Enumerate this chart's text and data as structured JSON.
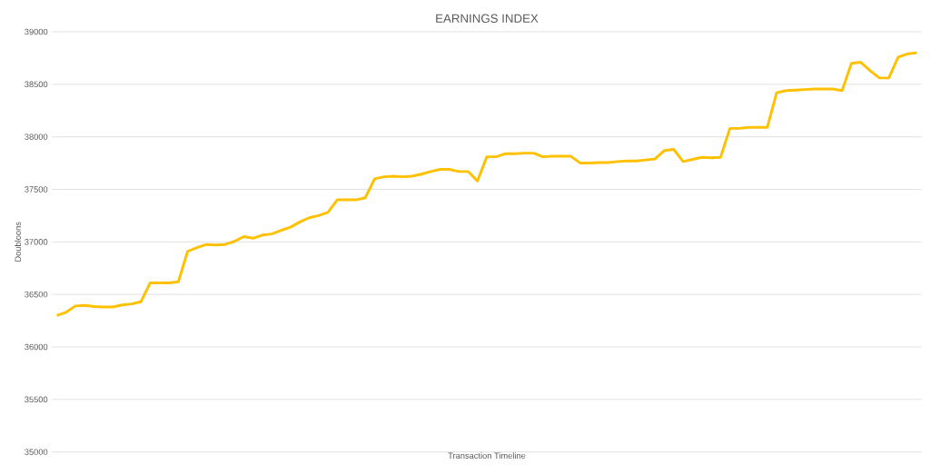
{
  "chart_data": {
    "type": "line",
    "title": "EARNINGS INDEX",
    "xlabel": "Transaction Timeline",
    "ylabel": "Doubloons",
    "categories": [
      null,
      null,
      null,
      null,
      null,
      null,
      null,
      null,
      null,
      null,
      null,
      null,
      null,
      null,
      null,
      null,
      null,
      null,
      null,
      null,
      null,
      null,
      null,
      null,
      null,
      null,
      null,
      null,
      null,
      null,
      null,
      null,
      null,
      null,
      null,
      null,
      null,
      null,
      null,
      null,
      null,
      null,
      null,
      null,
      null,
      null,
      null,
      null,
      null,
      null,
      null,
      null,
      null,
      null,
      null,
      null,
      null,
      null,
      null,
      null,
      null,
      null,
      null,
      null,
      null,
      null,
      null,
      null,
      null,
      null,
      null,
      null,
      null,
      null,
      null,
      null,
      null,
      null,
      null,
      null,
      null,
      null,
      null,
      null,
      null,
      null,
      null,
      null,
      null,
      null,
      null,
      null,
      null
    ],
    "series": [
      {
        "color": "#ffc000",
        "values": [
          36300,
          36330,
          36390,
          36395,
          36385,
          36380,
          36380,
          36400,
          36410,
          36430,
          36610,
          36610,
          36610,
          36620,
          36910,
          36945,
          36975,
          36970,
          36975,
          37005,
          37050,
          37035,
          37065,
          37075,
          37110,
          37140,
          37190,
          37230,
          37250,
          37280,
          37400,
          37400,
          37400,
          37420,
          37600,
          37620,
          37625,
          37620,
          37625,
          37645,
          37670,
          37690,
          37690,
          37670,
          37670,
          37580,
          37810,
          37810,
          37840,
          37840,
          37845,
          37845,
          37810,
          37815,
          37815,
          37815,
          37750,
          37750,
          37755,
          37755,
          37765,
          37770,
          37770,
          37780,
          37790,
          37870,
          37880,
          37765,
          37785,
          37805,
          37800,
          37805,
          38080,
          38080,
          38090,
          38090,
          38090,
          38420,
          38440,
          38445,
          38450,
          38455,
          38455,
          38455,
          38440,
          38700,
          38710,
          38630,
          38560,
          38560,
          38760,
          38790,
          38800
        ]
      }
    ],
    "ylim": [
      35000,
      39000
    ],
    "yticks": [
      35000,
      35500,
      36000,
      36500,
      37000,
      37500,
      38000,
      38500,
      39000
    ],
    "grid": "y",
    "marker": "none",
    "line_style": "solid"
  }
}
